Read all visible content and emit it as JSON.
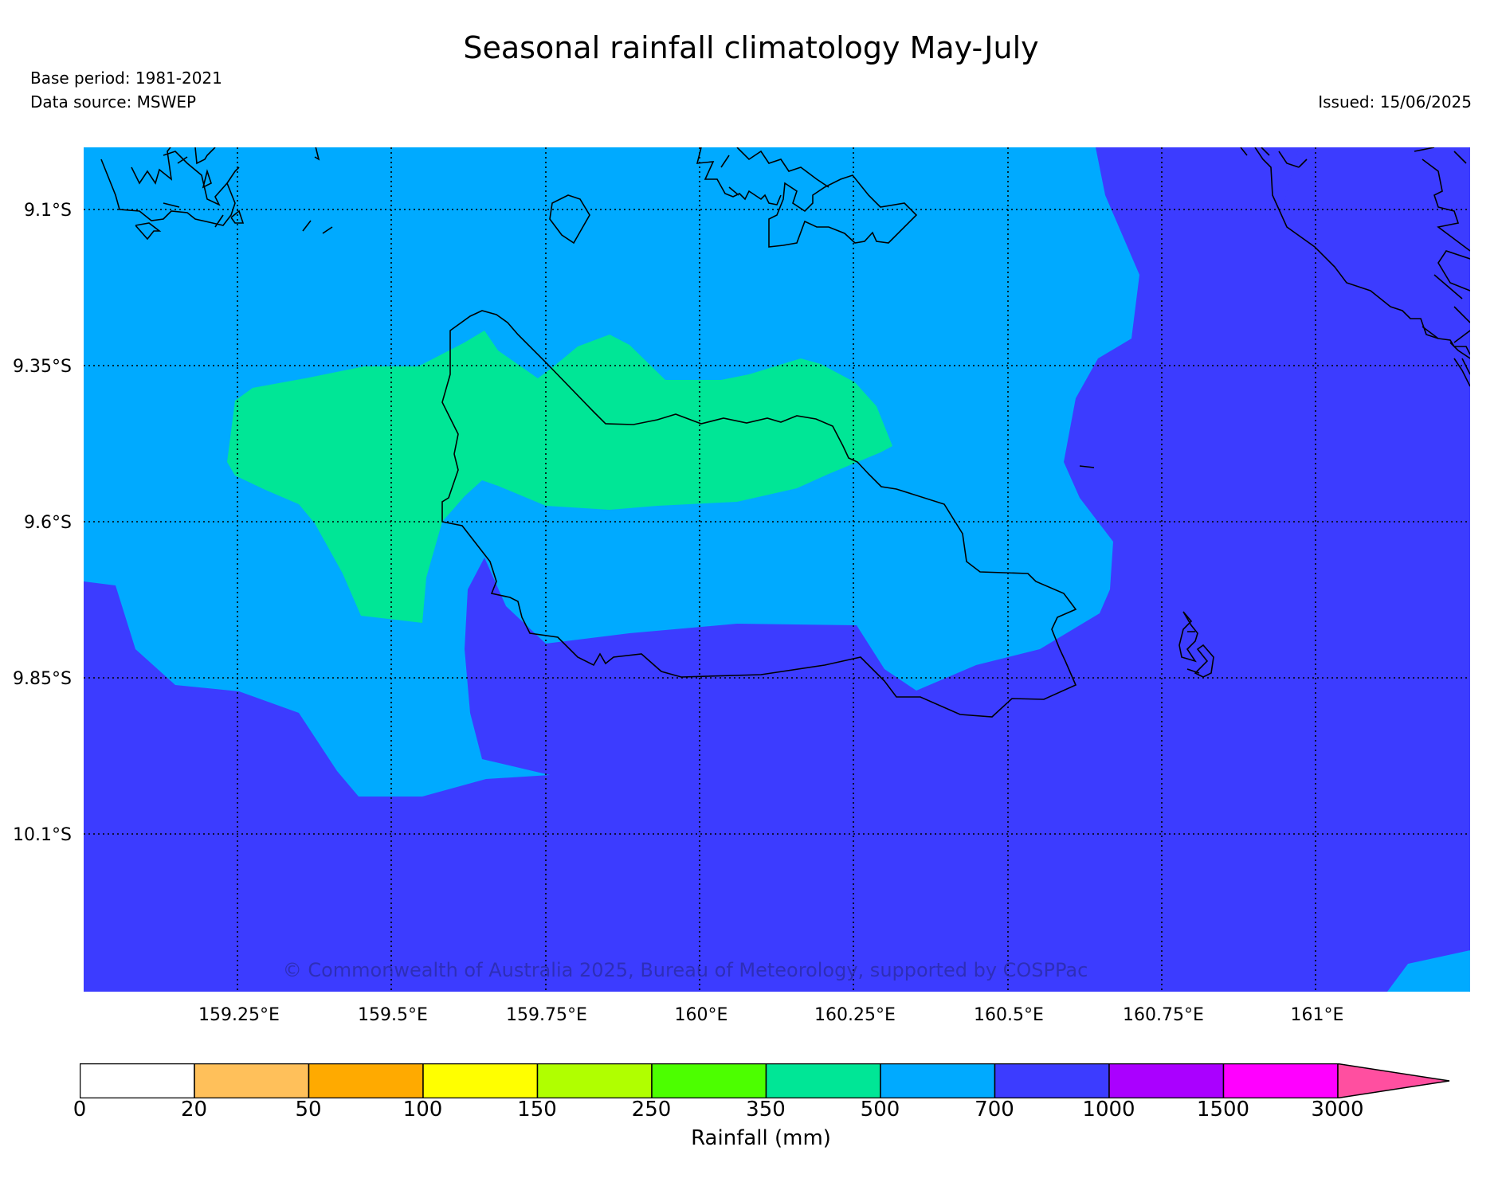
{
  "title": "Seasonal rainfall climatology May-July",
  "base_period": "Base period: 1981-2021",
  "data_source": "Data source: MSWEP",
  "issued": "Issued: 15/06/2025",
  "copyright": "© Commonwealth of Australia 2025, Bureau of Meteorology, supported by COSPPac",
  "lat_ticks": [
    "9.1°S",
    "9.35°S",
    "9.6°S",
    "9.85°S",
    "10.1°S"
  ],
  "lon_ticks": [
    "159.25°E",
    "159.5°E",
    "159.75°E",
    "160°E",
    "160.25°E",
    "160.5°E",
    "160.75°E",
    "161°E"
  ],
  "colorbar": {
    "title": "Rainfall (mm)",
    "labels": [
      "0",
      "20",
      "50",
      "100",
      "150",
      "250",
      "350",
      "500",
      "700",
      "1000",
      "1500",
      "3000"
    ],
    "colors": [
      "#ffffff",
      "#ffc05a",
      "#ffaa00",
      "#ffff00",
      "#b0ff00",
      "#4cff00",
      "#00e696",
      "#00aaff",
      "#3c3cff",
      "#aa00ff",
      "#ff00ff",
      "#ff4fa0"
    ]
  },
  "region_colors": {
    "band_350_500": "#00e696",
    "band_500_700": "#00aaff",
    "band_700_1000": "#3c3cff"
  }
}
